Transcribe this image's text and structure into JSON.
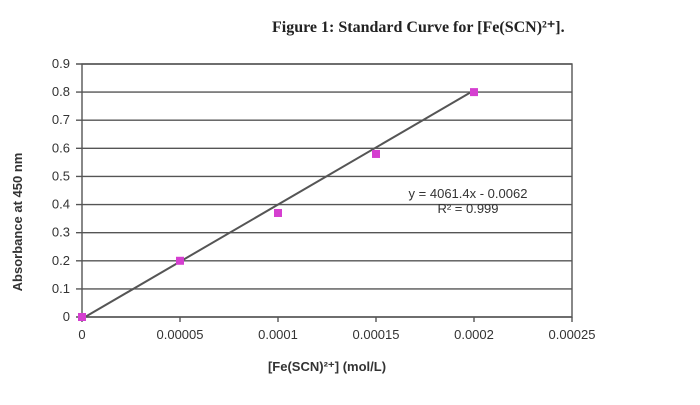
{
  "chart_data": {
    "type": "scatter",
    "title": "Figure 1: Standard Curve for [Fe(SCN)²⁺].",
    "xlabel": "[Fe(SCN)²⁺] (mol/L)",
    "ylabel": "Absorbance at 450 nm",
    "xlim": [
      0,
      0.00025
    ],
    "ylim": [
      0,
      0.9
    ],
    "x_ticks": [
      "0",
      "0.00005",
      "0.0001",
      "0.00015",
      "0.0002",
      "0.00025"
    ],
    "y_ticks": [
      "0",
      "0.1",
      "0.2",
      "0.3",
      "0.4",
      "0.5",
      "0.6",
      "0.7",
      "0.8",
      "0.9"
    ],
    "grid": true,
    "series": [
      {
        "x": [
          0,
          5e-05,
          0.0001,
          0.00015,
          0.0002
        ],
        "y": [
          0.0,
          0.2,
          0.37,
          0.58,
          0.8
        ],
        "color": "#d53fd0"
      }
    ],
    "trendline": {
      "slope": 4061.4,
      "intercept": -0.0062,
      "equation": "y = 4061.4x - 0.0062",
      "r2": "R² = 0.999",
      "color": "#555555"
    }
  }
}
